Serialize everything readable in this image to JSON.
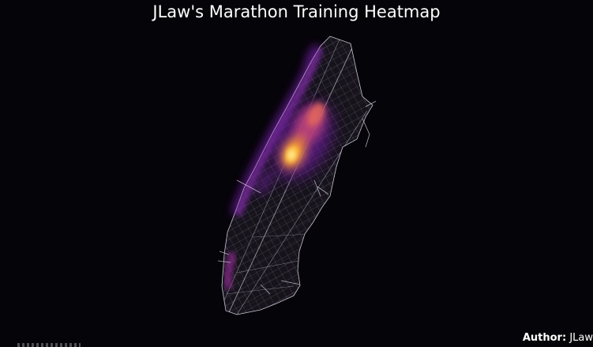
{
  "title": "JLaw's Marathon Training Heatmap",
  "author": {
    "label": "Author:",
    "name": "JLaw"
  },
  "colors": {
    "background": "#050408",
    "streets": "#bdb7c9",
    "heat_low": "#6a1b9a",
    "heat_mid": "#d24e6b",
    "heat_high": "#ffc23a",
    "heat_peak": "#fff3a8"
  },
  "map": {
    "type": "heatmap",
    "region": "Manhattan street network"
  }
}
